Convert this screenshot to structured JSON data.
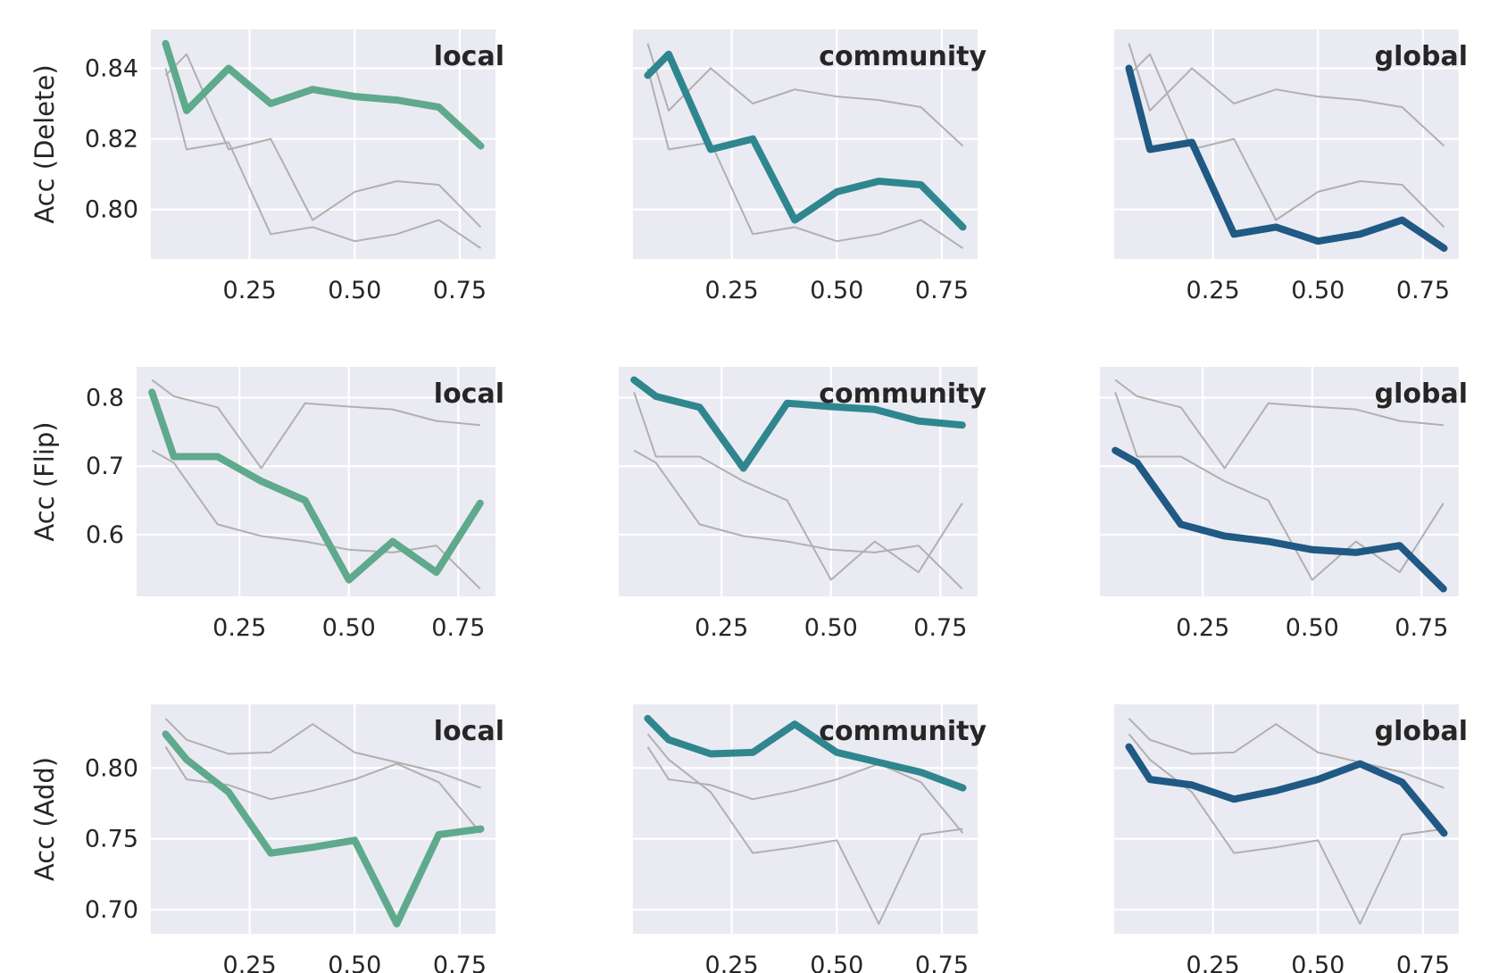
{
  "chart_data": {
    "type": "line",
    "x": [
      0.05,
      0.1,
      0.2,
      0.3,
      0.4,
      0.5,
      0.6,
      0.7,
      0.8
    ],
    "xticks": [
      "0.25",
      "0.50",
      "0.75"
    ],
    "colors": {
      "local": "#5fa98c",
      "community": "#2f868e",
      "global": "#1f5984",
      "context": "#b0b0b0"
    },
    "rows": [
      {
        "ylabel": "Acc (Delete)",
        "ylim": [
          0.786,
          0.851
        ],
        "yticks": [
          "0.84",
          "0.82",
          "0.80"
        ],
        "series": [
          {
            "name": "local",
            "values": [
              0.847,
              0.828,
              0.84,
              0.83,
              0.834,
              0.832,
              0.831,
              0.829,
              0.818
            ]
          },
          {
            "name": "community",
            "values": [
              0.838,
              0.844,
              0.817,
              0.82,
              0.797,
              0.805,
              0.808,
              0.807,
              0.795
            ]
          },
          {
            "name": "global",
            "values": [
              0.84,
              0.817,
              0.819,
              0.793,
              0.795,
              0.791,
              0.793,
              0.797,
              0.789
            ]
          }
        ]
      },
      {
        "ylabel": "Acc (Flip)",
        "ylim": [
          0.51,
          0.845
        ],
        "yticks": [
          "0.8",
          "0.7",
          "0.6"
        ],
        "series": [
          {
            "name": "local",
            "values": [
              0.808,
              0.714,
              0.714,
              0.678,
              0.65,
              0.534,
              0.59,
              0.545,
              0.646
            ]
          },
          {
            "name": "community",
            "values": [
              0.826,
              0.802,
              0.786,
              0.697,
              0.792,
              0.787,
              0.783,
              0.766,
              0.76
            ]
          },
          {
            "name": "global",
            "values": [
              0.723,
              0.705,
              0.615,
              0.598,
              0.59,
              0.578,
              0.574,
              0.584,
              0.521
            ]
          }
        ]
      },
      {
        "ylabel": "Acc (Add)",
        "ylim": [
          0.683,
          0.845
        ],
        "yticks": [
          "0.80",
          "0.75",
          "0.70"
        ],
        "series": [
          {
            "name": "local",
            "values": [
              0.824,
              0.806,
              0.783,
              0.74,
              0.744,
              0.749,
              0.69,
              0.753,
              0.757
            ]
          },
          {
            "name": "community",
            "values": [
              0.835,
              0.82,
              0.81,
              0.811,
              0.831,
              0.811,
              0.804,
              0.797,
              0.786
            ]
          },
          {
            "name": "global",
            "values": [
              0.815,
              0.792,
              0.788,
              0.778,
              0.784,
              0.792,
              0.803,
              0.79,
              0.754
            ]
          }
        ]
      }
    ]
  }
}
